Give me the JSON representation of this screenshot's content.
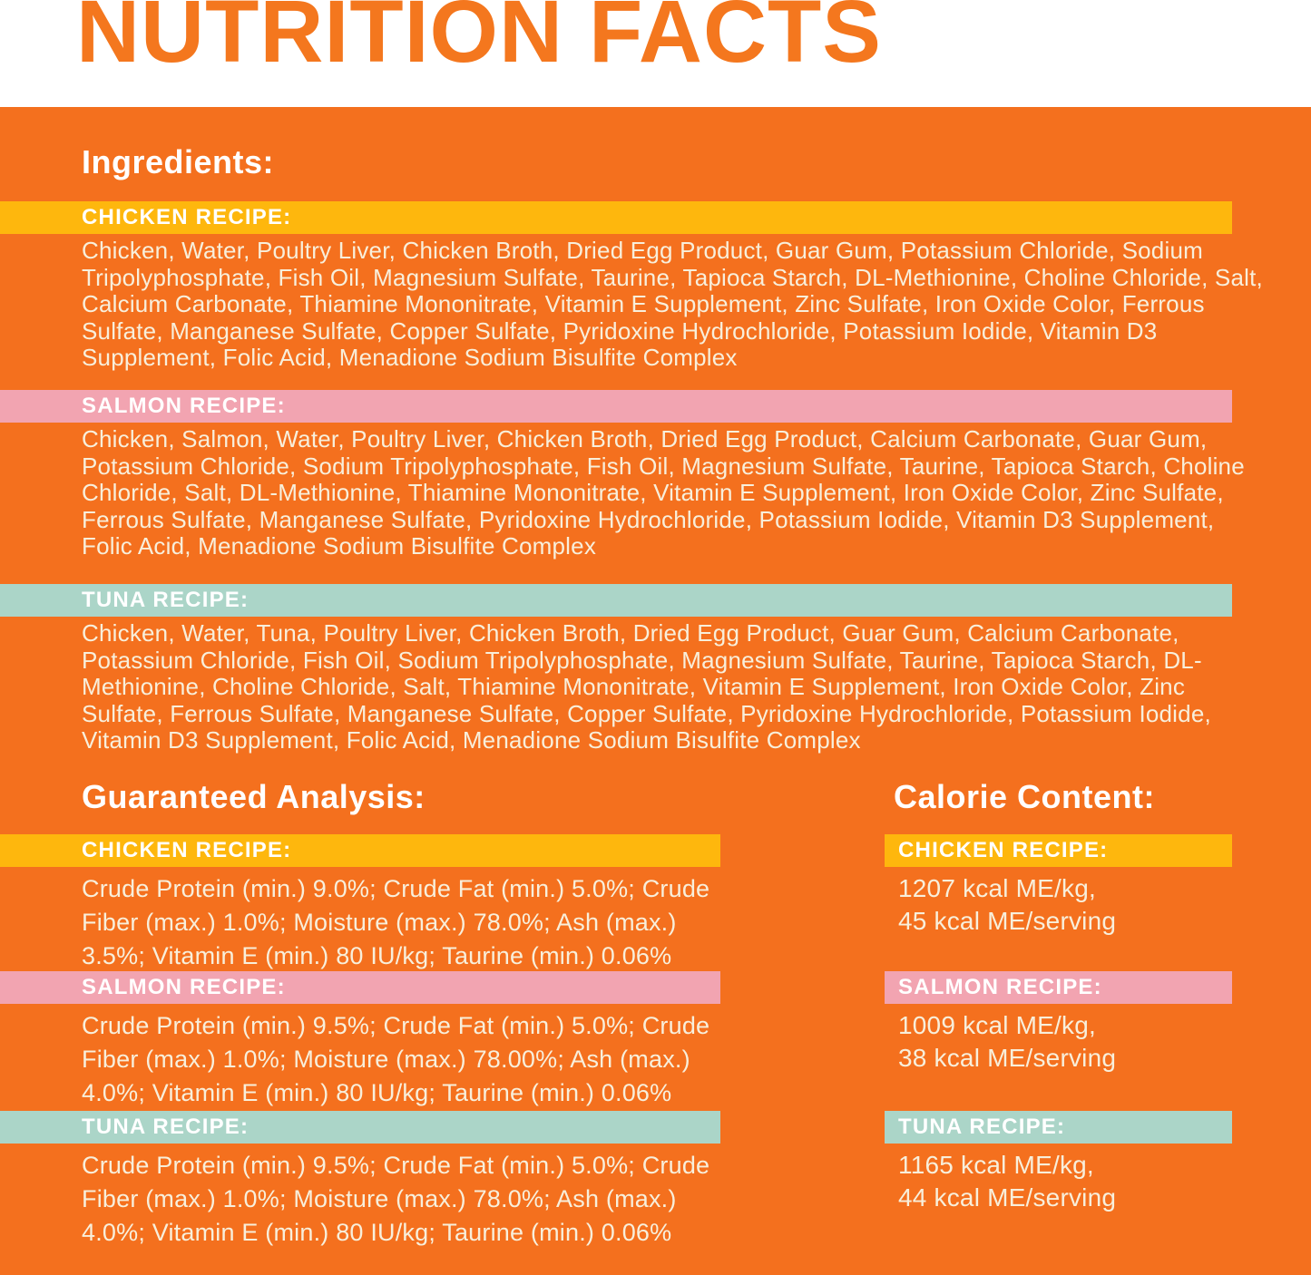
{
  "title": "NUTRITION FACTS",
  "colors": {
    "background_orange": "#F4701E",
    "title_orange": "#F4771E",
    "chicken_yellow": "#FEB70D",
    "salmon_pink": "#F2A4B1",
    "tuna_teal": "#ABD5C8",
    "body_text_cream": "#F8EFDB",
    "heading_white": "#FFFFFF"
  },
  "ingredients": {
    "heading": "Ingredients:",
    "recipes": [
      {
        "label": "CHICKEN RECIPE:",
        "color": "#FEB70D",
        "text": "Chicken, Water, Poultry Liver, Chicken Broth, Dried Egg Product, Guar Gum, Potassium Chloride, Sodium Tripolyphosphate, Fish Oil, Magnesium Sulfate, Taurine, Tapioca Starch, DL-Methionine, Choline Chloride, Salt, Calcium Carbonate, Thiamine Mononitrate, Vitamin E Supplement, Zinc Sulfate, Iron Oxide Color, Ferrous Sulfate, Manganese Sulfate, Copper Sulfate, Pyridoxine Hydrochloride, Potassium Iodide, Vitamin D3 Supplement, Folic Acid, Menadione Sodium Bisulfite Complex"
      },
      {
        "label": "SALMON RECIPE:",
        "color": "#F2A4B1",
        "text": "Chicken, Salmon, Water, Poultry Liver, Chicken Broth, Dried Egg Product, Calcium Carbonate, Guar Gum, Potassium Chloride, Sodium Tripolyphosphate, Fish Oil, Magnesium Sulfate, Taurine, Tapioca Starch, Choline Chloride, Salt, DL-Methionine, Thiamine Mononitrate, Vitamin E Supplement, Iron Oxide Color, Zinc Sulfate, Ferrous Sulfate, Manganese Sulfate, Pyridoxine Hydrochloride, Potassium Iodide, Vitamin D3 Supplement, Folic Acid, Menadione Sodium Bisulfite Complex"
      },
      {
        "label": "TUNA RECIPE:",
        "color": "#ABD5C8",
        "text": "Chicken, Water, Tuna, Poultry Liver, Chicken Broth, Dried Egg Product, Guar Gum, Calcium Carbonate, Potassium Chloride, Fish Oil, Sodium Tripolyphosphate, Magnesium Sulfate, Taurine, Tapioca Starch, DL-Methionine, Choline Chloride, Salt, Thiamine Mononitrate, Vitamin E Supplement, Iron Oxide Color, Zinc Sulfate, Ferrous Sulfate, Manganese Sulfate, Copper Sulfate, Pyridoxine Hydrochloride, Potassium Iodide, Vitamin D3 Supplement, Folic Acid, Menadione Sodium Bisulfite Complex"
      }
    ]
  },
  "guaranteed_analysis": {
    "heading": "Guaranteed Analysis:",
    "recipes": [
      {
        "label": "CHICKEN RECIPE:",
        "color": "#FEB70D",
        "text": "Crude Protein (min.) 9.0%; Crude Fat (min.) 5.0%; Crude Fiber (max.) 1.0%; Moisture (max.) 78.0%; Ash (max.) 3.5%; Vitamin E (min.) 80 IU/kg; Taurine (min.) 0.06%"
      },
      {
        "label": "SALMON RECIPE:",
        "color": "#F2A4B1",
        "text": "Crude Protein (min.) 9.5%; Crude Fat (min.) 5.0%; Crude Fiber (max.) 1.0%; Moisture (max.) 78.00%; Ash (max.) 4.0%; Vitamin E (min.) 80 IU/kg; Taurine (min.) 0.06%"
      },
      {
        "label": "TUNA RECIPE:",
        "color": "#ABD5C8",
        "text": "Crude Protein (min.) 9.5%; Crude Fat (min.) 5.0%; Crude Fiber (max.) 1.0%; Moisture (max.) 78.0%; Ash (max.) 4.0%; Vitamin E (min.) 80 IU/kg; Taurine (min.) 0.06%"
      }
    ]
  },
  "calorie_content": {
    "heading": "Calorie Content:",
    "recipes": [
      {
        "label": "CHICKEN RECIPE:",
        "color": "#FEB70D",
        "kcal_per_kg": "1207 kcal ME/kg,",
        "kcal_per_serving": "45 kcal ME/serving"
      },
      {
        "label": "SALMON RECIPE:",
        "color": "#F2A4B1",
        "kcal_per_kg": "1009 kcal ME/kg,",
        "kcal_per_serving": "38 kcal ME/serving"
      },
      {
        "label": "TUNA RECIPE:",
        "color": "#ABD5C8",
        "kcal_per_kg": "1165 kcal ME/kg,",
        "kcal_per_serving": "44 kcal ME/serving"
      }
    ]
  }
}
